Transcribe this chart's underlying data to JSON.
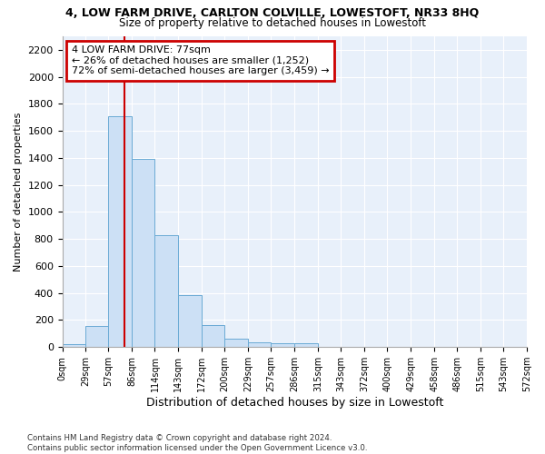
{
  "title": "4, LOW FARM DRIVE, CARLTON COLVILLE, LOWESTOFT, NR33 8HQ",
  "subtitle": "Size of property relative to detached houses in Lowestoft",
  "xlabel": "Distribution of detached houses by size in Lowestoft",
  "ylabel": "Number of detached properties",
  "bar_color": "#cce0f5",
  "bar_edge_color": "#6aaad4",
  "background_color": "#e8f0fa",
  "grid_color": "#ffffff",
  "property_line_x": 77,
  "property_line_color": "#cc0000",
  "annotation_text": "4 LOW FARM DRIVE: 77sqm\n← 26% of detached houses are smaller (1,252)\n72% of semi-detached houses are larger (3,459) →",
  "annotation_box_color": "#cc0000",
  "footnote": "Contains HM Land Registry data © Crown copyright and database right 2024.\nContains public sector information licensed under the Open Government Licence v3.0.",
  "bin_edges": [
    0,
    29,
    57,
    86,
    114,
    143,
    172,
    200,
    229,
    257,
    286,
    315,
    343,
    372,
    400,
    429,
    458,
    486,
    515,
    543,
    572
  ],
  "bar_heights": [
    20,
    155,
    1710,
    1395,
    830,
    385,
    165,
    65,
    35,
    28,
    28,
    0,
    0,
    0,
    0,
    0,
    0,
    0,
    0,
    0
  ],
  "ylim": [
    0,
    2300
  ],
  "yticks": [
    0,
    200,
    400,
    600,
    800,
    1000,
    1200,
    1400,
    1600,
    1800,
    2000,
    2200
  ]
}
